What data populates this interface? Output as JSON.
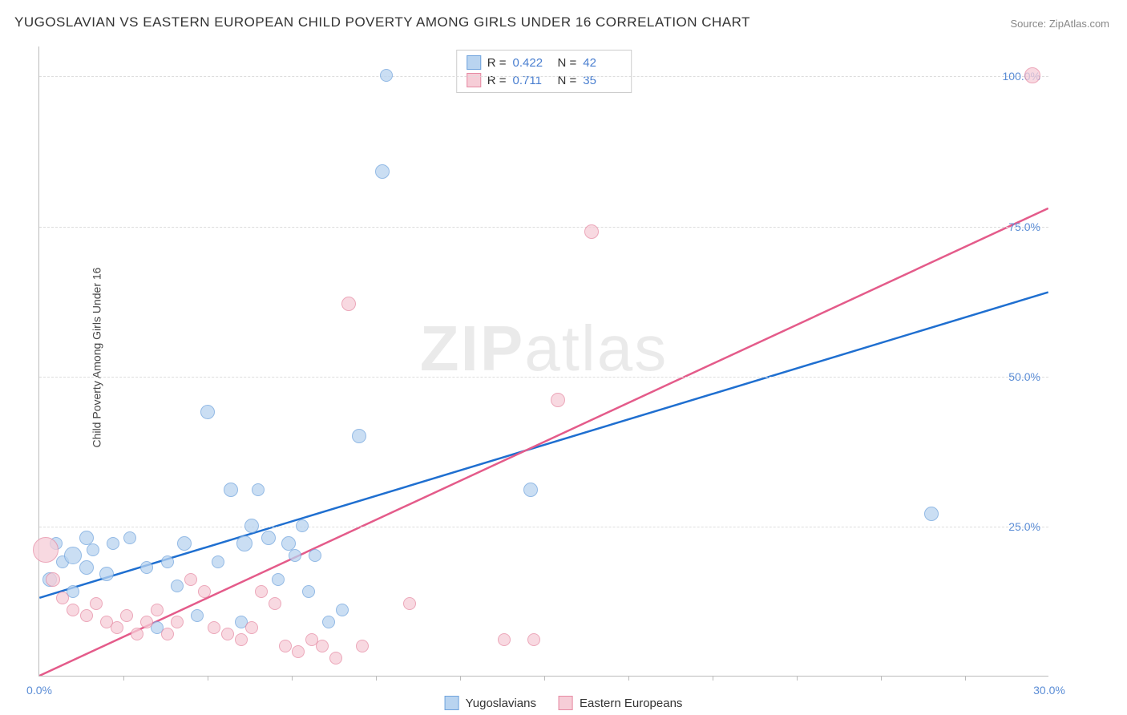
{
  "title": "YUGOSLAVIAN VS EASTERN EUROPEAN CHILD POVERTY AMONG GIRLS UNDER 16 CORRELATION CHART",
  "source": "Source: ZipAtlas.com",
  "y_axis_label": "Child Poverty Among Girls Under 16",
  "watermark_a": "ZIP",
  "watermark_b": "atlas",
  "chart": {
    "type": "scatter",
    "xlim": [
      0,
      30
    ],
    "ylim": [
      0,
      105
    ],
    "x_ticks": [
      0,
      30
    ],
    "x_tick_labels": [
      "0.0%",
      "30.0%"
    ],
    "x_minor_ticks": [
      2.5,
      5,
      7.5,
      10,
      12.5,
      15,
      17.5,
      20,
      22.5,
      25,
      27.5
    ],
    "y_ticks": [
      25,
      50,
      75,
      100
    ],
    "y_tick_labels": [
      "25.0%",
      "50.0%",
      "75.0%",
      "100.0%"
    ],
    "grid_color": "#dddddd",
    "axis_color": "#bbbbbb",
    "tick_label_color": "#5b8dd6",
    "background_color": "#ffffff"
  },
  "series": [
    {
      "name": "Yugoslavians",
      "fill": "#b9d4f0",
      "stroke": "#6fa3dd",
      "line_color": "#1f6fd0",
      "r_value": "0.422",
      "n_value": "42",
      "trend": {
        "x1": 0,
        "y1": 13,
        "x2": 30,
        "y2": 64
      },
      "points": [
        {
          "x": 0.3,
          "y": 16,
          "r": 9
        },
        {
          "x": 0.5,
          "y": 22,
          "r": 8
        },
        {
          "x": 0.7,
          "y": 19,
          "r": 8
        },
        {
          "x": 1.0,
          "y": 14,
          "r": 8
        },
        {
          "x": 1.0,
          "y": 20,
          "r": 11
        },
        {
          "x": 1.4,
          "y": 23,
          "r": 9
        },
        {
          "x": 1.4,
          "y": 18,
          "r": 9
        },
        {
          "x": 1.6,
          "y": 21,
          "r": 8
        },
        {
          "x": 2.0,
          "y": 17,
          "r": 9
        },
        {
          "x": 2.2,
          "y": 22,
          "r": 8
        },
        {
          "x": 2.7,
          "y": 23,
          "r": 8
        },
        {
          "x": 3.2,
          "y": 18,
          "r": 8
        },
        {
          "x": 3.5,
          "y": 8,
          "r": 8
        },
        {
          "x": 3.8,
          "y": 19,
          "r": 8
        },
        {
          "x": 4.1,
          "y": 15,
          "r": 8
        },
        {
          "x": 4.3,
          "y": 22,
          "r": 9
        },
        {
          "x": 4.7,
          "y": 10,
          "r": 8
        },
        {
          "x": 5.0,
          "y": 44,
          "r": 9
        },
        {
          "x": 5.3,
          "y": 19,
          "r": 8
        },
        {
          "x": 5.7,
          "y": 31,
          "r": 9
        },
        {
          "x": 6.0,
          "y": 9,
          "r": 8
        },
        {
          "x": 6.1,
          "y": 22,
          "r": 10
        },
        {
          "x": 6.3,
          "y": 25,
          "r": 9
        },
        {
          "x": 6.5,
          "y": 31,
          "r": 8
        },
        {
          "x": 6.8,
          "y": 23,
          "r": 9
        },
        {
          "x": 7.1,
          "y": 16,
          "r": 8
        },
        {
          "x": 7.4,
          "y": 22,
          "r": 9
        },
        {
          "x": 7.6,
          "y": 20,
          "r": 8
        },
        {
          "x": 7.8,
          "y": 25,
          "r": 8
        },
        {
          "x": 8.0,
          "y": 14,
          "r": 8
        },
        {
          "x": 8.2,
          "y": 20,
          "r": 8
        },
        {
          "x": 8.6,
          "y": 9,
          "r": 8
        },
        {
          "x": 9.0,
          "y": 11,
          "r": 8
        },
        {
          "x": 9.5,
          "y": 40,
          "r": 9
        },
        {
          "x": 10.2,
          "y": 84,
          "r": 9
        },
        {
          "x": 10.3,
          "y": 100,
          "r": 8
        },
        {
          "x": 14.6,
          "y": 31,
          "r": 9
        },
        {
          "x": 26.5,
          "y": 27,
          "r": 9
        }
      ]
    },
    {
      "name": "Eastern Europeans",
      "fill": "#f6cdd7",
      "stroke": "#e68aa3",
      "line_color": "#e45b8a",
      "r_value": "0.711",
      "n_value": "35",
      "trend": {
        "x1": 0,
        "y1": 0,
        "x2": 30,
        "y2": 78
      },
      "points": [
        {
          "x": 0.2,
          "y": 21,
          "r": 16
        },
        {
          "x": 0.4,
          "y": 16,
          "r": 9
        },
        {
          "x": 0.7,
          "y": 13,
          "r": 8
        },
        {
          "x": 1.0,
          "y": 11,
          "r": 8
        },
        {
          "x": 1.4,
          "y": 10,
          "r": 8
        },
        {
          "x": 1.7,
          "y": 12,
          "r": 8
        },
        {
          "x": 2.0,
          "y": 9,
          "r": 8
        },
        {
          "x": 2.3,
          "y": 8,
          "r": 8
        },
        {
          "x": 2.6,
          "y": 10,
          "r": 8
        },
        {
          "x": 2.9,
          "y": 7,
          "r": 8
        },
        {
          "x": 3.2,
          "y": 9,
          "r": 8
        },
        {
          "x": 3.5,
          "y": 11,
          "r": 8
        },
        {
          "x": 3.8,
          "y": 7,
          "r": 8
        },
        {
          "x": 4.1,
          "y": 9,
          "r": 8
        },
        {
          "x": 4.5,
          "y": 16,
          "r": 8
        },
        {
          "x": 4.9,
          "y": 14,
          "r": 8
        },
        {
          "x": 5.2,
          "y": 8,
          "r": 8
        },
        {
          "x": 5.6,
          "y": 7,
          "r": 8
        },
        {
          "x": 6.0,
          "y": 6,
          "r": 8
        },
        {
          "x": 6.3,
          "y": 8,
          "r": 8
        },
        {
          "x": 6.6,
          "y": 14,
          "r": 8
        },
        {
          "x": 7.0,
          "y": 12,
          "r": 8
        },
        {
          "x": 7.3,
          "y": 5,
          "r": 8
        },
        {
          "x": 7.7,
          "y": 4,
          "r": 8
        },
        {
          "x": 8.1,
          "y": 6,
          "r": 8
        },
        {
          "x": 8.4,
          "y": 5,
          "r": 8
        },
        {
          "x": 8.8,
          "y": 3,
          "r": 8
        },
        {
          "x": 9.2,
          "y": 62,
          "r": 9
        },
        {
          "x": 9.6,
          "y": 5,
          "r": 8
        },
        {
          "x": 11.0,
          "y": 12,
          "r": 8
        },
        {
          "x": 13.8,
          "y": 6,
          "r": 8
        },
        {
          "x": 14.7,
          "y": 6,
          "r": 8
        },
        {
          "x": 15.4,
          "y": 46,
          "r": 9
        },
        {
          "x": 16.4,
          "y": 74,
          "r": 9
        },
        {
          "x": 29.5,
          "y": 100,
          "r": 10
        }
      ]
    }
  ],
  "legend_bottom": {
    "items": [
      "Yugoslavians",
      "Eastern Europeans"
    ]
  },
  "stats_legend_labels": {
    "r": "R =",
    "n": "N ="
  }
}
